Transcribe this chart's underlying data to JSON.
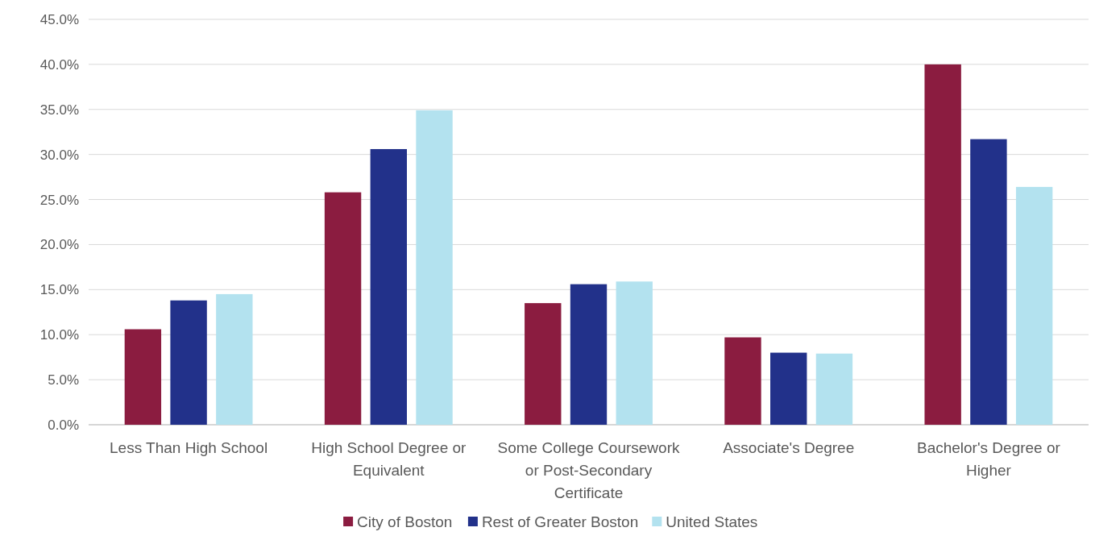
{
  "chart_data": {
    "type": "bar",
    "categories": [
      "Less Than High School",
      "High School Degree or Equivalent",
      "Some College Coursework or Post-Secondary Certificate",
      "Associate's Degree",
      "Bachelor's Degree or Higher"
    ],
    "series": [
      {
        "name": "City of Boston",
        "color": "#8b1c40",
        "values": [
          10.6,
          25.8,
          13.5,
          9.7,
          40.0
        ]
      },
      {
        "name": "Rest of Greater Boston",
        "color": "#22318a",
        "values": [
          13.8,
          30.6,
          15.6,
          8.0,
          31.7
        ]
      },
      {
        "name": "United States",
        "color": "#b3e2ef",
        "values": [
          14.5,
          34.9,
          15.9,
          7.9,
          26.4
        ]
      }
    ],
    "ylim": [
      0,
      45
    ],
    "yticks": [
      {
        "value": 0,
        "label": "0.0%"
      },
      {
        "value": 5,
        "label": "5.0%"
      },
      {
        "value": 10,
        "label": "10.0%"
      },
      {
        "value": 15,
        "label": "15.0%"
      },
      {
        "value": 20,
        "label": "20.0%"
      },
      {
        "value": 25,
        "label": "25.0%"
      },
      {
        "value": 30,
        "label": "30.0%"
      },
      {
        "value": 35,
        "label": "35.0%"
      },
      {
        "value": 40,
        "label": "40.0%"
      },
      {
        "value": 45,
        "label": "45.0%"
      }
    ],
    "grid": "y",
    "legend": "bottom"
  }
}
